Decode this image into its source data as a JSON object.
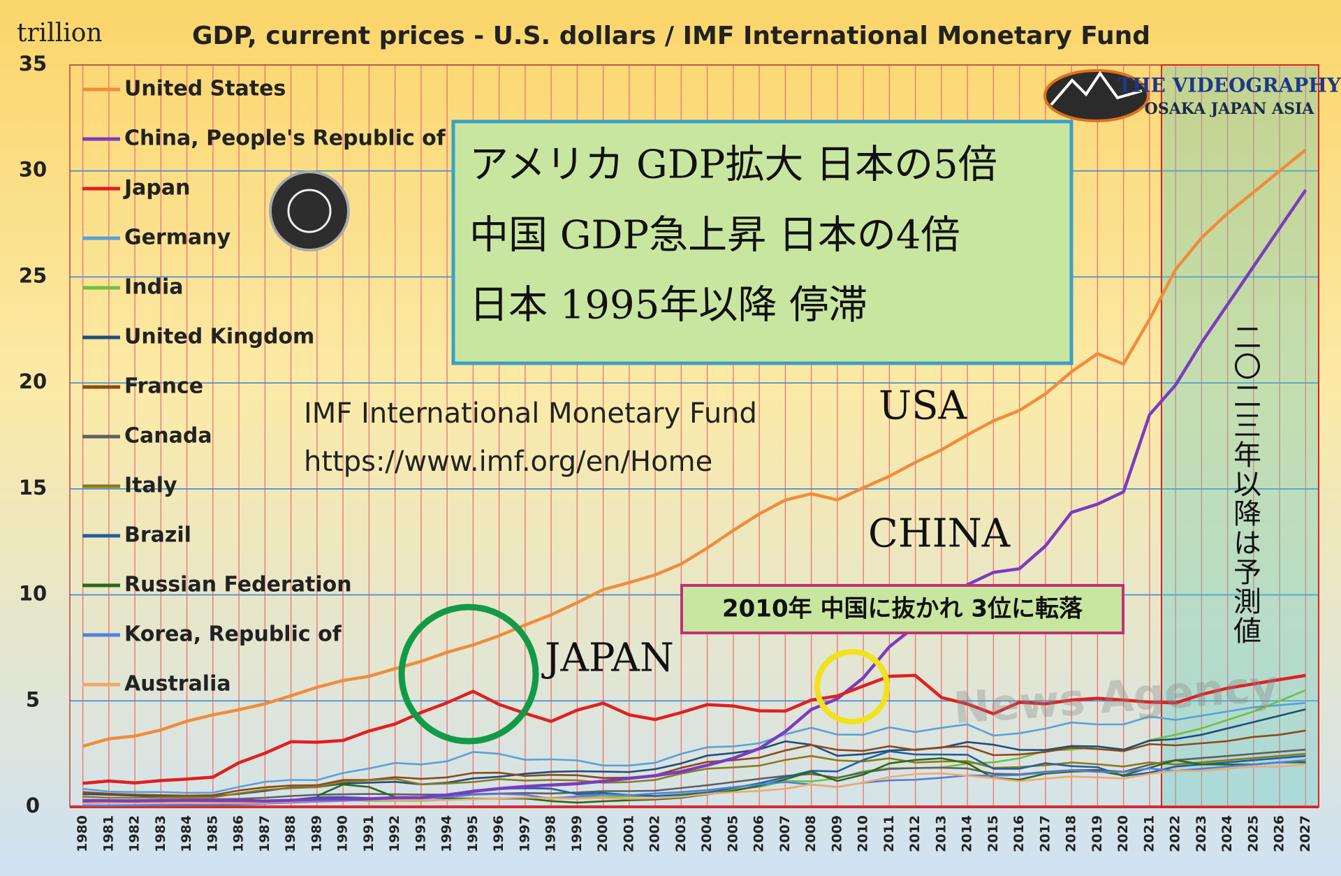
{
  "chart_data": {
    "type": "line",
    "title": "GDP, current prices - U.S. dollars / IMF International Monetary Fund",
    "y_label": "trillion",
    "annotation_box": [
      "アメリカ GDP拡大 日本の5倍",
      "中国 GDP急上昇 日本の4倍",
      "日本 1995年以降 停滞"
    ],
    "source": "IMF International Monetary Fund",
    "source_url": "https://www.imf.org/en/Home",
    "labels": [
      "USA",
      "CHINA",
      "JAPAN"
    ],
    "callout": "2010年 中国に抜かれ 3位に転落",
    "forecast_note": "二〇二三年以降は予測値",
    "logo": [
      "THE VIDEOGRAPHY",
      "OSAKA JAPAN ASIA"
    ],
    "watermark": "News Agency",
    "grid": true,
    "legend": "left",
    "x": [
      1980,
      1981,
      1982,
      1983,
      1984,
      1985,
      1986,
      1987,
      1988,
      1989,
      1990,
      1991,
      1992,
      1993,
      1994,
      1995,
      1996,
      1997,
      1998,
      1999,
      2000,
      2001,
      2002,
      2003,
      2004,
      2005,
      2006,
      2007,
      2008,
      2009,
      2010,
      2011,
      2012,
      2013,
      2014,
      2015,
      2016,
      2017,
      2018,
      2019,
      2020,
      2021,
      2022,
      2023,
      2024,
      2025,
      2026,
      2027
    ],
    "xlim": [
      1979.5,
      2027.5
    ],
    "ylim": [
      0,
      35
    ],
    "yticks": [
      0,
      5,
      10,
      15,
      20,
      25,
      30,
      35
    ],
    "series": [
      {
        "name": "United States",
        "color": "#f08c3c",
        "values": [
          2.86,
          3.21,
          3.34,
          3.63,
          4.04,
          4.34,
          4.58,
          4.86,
          5.24,
          5.64,
          5.96,
          6.16,
          6.52,
          6.86,
          7.29,
          7.64,
          8.07,
          8.58,
          9.06,
          9.63,
          10.25,
          10.58,
          10.94,
          11.46,
          12.21,
          13.04,
          13.82,
          14.47,
          14.77,
          14.48,
          15.05,
          15.6,
          16.25,
          16.84,
          17.55,
          18.21,
          18.7,
          19.48,
          20.53,
          21.38,
          20.89,
          23.0,
          25.35,
          26.85,
          28.0,
          29.0,
          30.0,
          31.0
        ]
      },
      {
        "name": "China, People's Republic of",
        "color": "#7a3cc0",
        "values": [
          0.3,
          0.29,
          0.28,
          0.3,
          0.31,
          0.31,
          0.3,
          0.27,
          0.31,
          0.35,
          0.36,
          0.38,
          0.43,
          0.44,
          0.56,
          0.73,
          0.86,
          0.96,
          1.03,
          1.09,
          1.21,
          1.34,
          1.47,
          1.66,
          1.96,
          2.29,
          2.75,
          3.55,
          4.59,
          5.1,
          6.09,
          7.55,
          8.53,
          9.57,
          10.48,
          11.06,
          11.23,
          12.31,
          13.89,
          14.28,
          14.86,
          18.5,
          19.9,
          21.9,
          23.7,
          25.5,
          27.3,
          29.1
        ]
      },
      {
        "name": "Japan",
        "color": "#e02020",
        "values": [
          1.11,
          1.22,
          1.13,
          1.24,
          1.31,
          1.4,
          2.08,
          2.53,
          3.07,
          3.05,
          3.13,
          3.58,
          3.91,
          4.45,
          4.91,
          5.45,
          4.83,
          4.41,
          4.03,
          4.56,
          4.89,
          4.34,
          4.12,
          4.45,
          4.82,
          4.76,
          4.53,
          4.52,
          5.04,
          5.23,
          5.7,
          6.16,
          6.2,
          5.16,
          4.85,
          4.39,
          4.93,
          4.86,
          5.04,
          5.12,
          5.04,
          4.94,
          4.9,
          5.3,
          5.6,
          5.8,
          6.0,
          6.2
        ]
      },
      {
        "name": "Germany",
        "color": "#5aa0d8",
        "values": [
          0.85,
          0.72,
          0.7,
          0.7,
          0.66,
          0.67,
          0.94,
          1.18,
          1.27,
          1.26,
          1.6,
          1.81,
          2.07,
          2.0,
          2.15,
          2.59,
          2.5,
          2.22,
          2.24,
          2.19,
          1.95,
          1.95,
          2.08,
          2.5,
          2.81,
          2.85,
          3.0,
          3.42,
          3.73,
          3.41,
          3.4,
          3.75,
          3.53,
          3.73,
          3.89,
          3.36,
          3.47,
          3.69,
          3.98,
          3.89,
          3.89,
          4.26,
          4.1,
          4.3,
          4.5,
          4.7,
          4.8,
          4.9
        ]
      },
      {
        "name": "India",
        "color": "#70c040",
        "values": [
          0.19,
          0.2,
          0.21,
          0.22,
          0.22,
          0.24,
          0.25,
          0.28,
          0.3,
          0.3,
          0.33,
          0.28,
          0.29,
          0.28,
          0.33,
          0.36,
          0.39,
          0.42,
          0.43,
          0.46,
          0.47,
          0.49,
          0.51,
          0.61,
          0.71,
          0.82,
          0.94,
          1.22,
          1.2,
          1.34,
          1.68,
          1.82,
          1.83,
          1.86,
          2.04,
          2.1,
          2.29,
          2.65,
          2.7,
          2.84,
          2.67,
          3.15,
          3.4,
          3.7,
          4.1,
          4.5,
          5.0,
          5.5
        ]
      },
      {
        "name": "United Kingdom",
        "color": "#1f4e79",
        "values": [
          0.6,
          0.57,
          0.53,
          0.5,
          0.47,
          0.5,
          0.61,
          0.75,
          0.91,
          0.93,
          1.1,
          1.14,
          1.18,
          1.06,
          1.14,
          1.34,
          1.42,
          1.56,
          1.65,
          1.68,
          1.66,
          1.64,
          1.78,
          2.05,
          2.42,
          2.54,
          2.71,
          3.09,
          2.93,
          2.41,
          2.48,
          2.66,
          2.7,
          2.79,
          3.06,
          2.93,
          2.69,
          2.68,
          2.87,
          2.85,
          2.7,
          3.12,
          3.2,
          3.4,
          3.7,
          4.0,
          4.3,
          4.6
        ]
      },
      {
        "name": "France",
        "color": "#8b4a1a",
        "values": [
          0.7,
          0.62,
          0.58,
          0.55,
          0.53,
          0.55,
          0.77,
          0.92,
          1.01,
          1.02,
          1.27,
          1.27,
          1.4,
          1.32,
          1.39,
          1.6,
          1.61,
          1.46,
          1.51,
          1.49,
          1.36,
          1.38,
          1.49,
          1.84,
          2.12,
          2.2,
          2.32,
          2.66,
          2.92,
          2.69,
          2.64,
          2.86,
          2.68,
          2.81,
          2.85,
          2.44,
          2.47,
          2.59,
          2.79,
          2.73,
          2.63,
          2.96,
          2.9,
          3.0,
          3.1,
          3.3,
          3.4,
          3.6
        ]
      },
      {
        "name": "Canada",
        "color": "#606060",
        "values": [
          0.27,
          0.3,
          0.31,
          0.34,
          0.35,
          0.36,
          0.38,
          0.43,
          0.51,
          0.57,
          0.59,
          0.61,
          0.59,
          0.58,
          0.58,
          0.6,
          0.63,
          0.65,
          0.63,
          0.68,
          0.74,
          0.74,
          0.76,
          0.89,
          1.02,
          1.17,
          1.32,
          1.46,
          1.55,
          1.37,
          1.62,
          1.79,
          1.83,
          1.85,
          1.81,
          1.56,
          1.53,
          1.65,
          1.73,
          1.74,
          1.65,
          1.99,
          2.2,
          2.3,
          2.4,
          2.5,
          2.6,
          2.7
        ]
      },
      {
        "name": "Italy",
        "color": "#8b7a1a",
        "values": [
          0.48,
          0.43,
          0.43,
          0.44,
          0.44,
          0.45,
          0.64,
          0.8,
          0.88,
          0.93,
          1.18,
          1.25,
          1.32,
          1.06,
          1.1,
          1.17,
          1.31,
          1.24,
          1.27,
          1.25,
          1.14,
          1.17,
          1.27,
          1.57,
          1.8,
          1.86,
          1.94,
          2.21,
          2.4,
          2.19,
          2.14,
          2.29,
          2.09,
          2.14,
          2.16,
          1.84,
          1.88,
          1.96,
          2.09,
          2.01,
          1.9,
          2.1,
          2.0,
          2.1,
          2.2,
          2.3,
          2.4,
          2.5
        ]
      },
      {
        "name": "Brazil",
        "color": "#2060a0",
        "values": [
          0.24,
          0.26,
          0.28,
          0.2,
          0.2,
          0.22,
          0.27,
          0.3,
          0.33,
          0.45,
          0.46,
          0.41,
          0.39,
          0.44,
          0.56,
          0.77,
          0.85,
          0.88,
          0.86,
          0.6,
          0.66,
          0.56,
          0.51,
          0.56,
          0.67,
          0.89,
          1.11,
          1.4,
          1.7,
          1.67,
          2.21,
          2.62,
          2.47,
          2.47,
          2.46,
          1.8,
          1.8,
          2.06,
          1.92,
          1.87,
          1.45,
          1.61,
          1.9,
          2.0,
          2.1,
          2.2,
          2.3,
          2.4
        ]
      },
      {
        "name": "Russian Federation",
        "color": "#2a6a1a",
        "values": [
          null,
          null,
          null,
          null,
          null,
          null,
          null,
          null,
          null,
          0.51,
          1.05,
          0.94,
          0.46,
          0.44,
          0.4,
          0.39,
          0.39,
          0.4,
          0.27,
          0.2,
          0.26,
          0.31,
          0.35,
          0.43,
          0.59,
          0.76,
          0.99,
          1.3,
          1.66,
          1.22,
          1.52,
          2.05,
          2.21,
          2.29,
          2.06,
          1.36,
          1.28,
          1.57,
          1.66,
          1.69,
          1.49,
          1.84,
          2.2,
          2.0,
          2.0,
          2.0,
          2.1,
          2.1
        ]
      },
      {
        "name": "Korea, Republic of",
        "color": "#5080e0",
        "values": [
          0.07,
          0.07,
          0.08,
          0.09,
          0.1,
          0.1,
          0.12,
          0.15,
          0.2,
          0.25,
          0.28,
          0.33,
          0.36,
          0.39,
          0.46,
          0.57,
          0.61,
          0.57,
          0.38,
          0.5,
          0.58,
          0.55,
          0.63,
          0.7,
          0.79,
          0.93,
          1.05,
          1.17,
          1.05,
          0.94,
          1.14,
          1.25,
          1.28,
          1.37,
          1.48,
          1.47,
          1.5,
          1.62,
          1.72,
          1.65,
          1.64,
          1.81,
          1.7,
          1.8,
          1.9,
          2.0,
          2.1,
          2.2
        ]
      },
      {
        "name": "Australia",
        "color": "#f0a870",
        "values": [
          0.16,
          0.19,
          0.19,
          0.18,
          0.2,
          0.18,
          0.18,
          0.19,
          0.24,
          0.3,
          0.31,
          0.33,
          0.32,
          0.31,
          0.32,
          0.37,
          0.4,
          0.44,
          0.4,
          0.39,
          0.42,
          0.38,
          0.4,
          0.47,
          0.61,
          0.69,
          0.75,
          0.85,
          1.06,
          0.93,
          1.15,
          1.4,
          1.55,
          1.58,
          1.47,
          1.35,
          1.21,
          1.33,
          1.43,
          1.39,
          1.33,
          1.55,
          1.7,
          1.7,
          1.8,
          1.9,
          1.9,
          2.0
        ]
      }
    ]
  }
}
